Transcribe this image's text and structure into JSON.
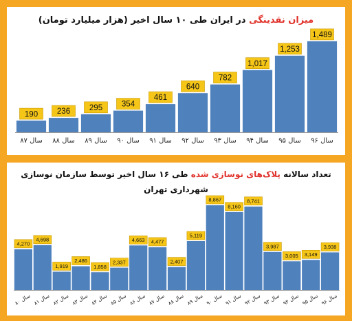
{
  "colors": {
    "bar": "#4f81bd",
    "label_bg": "#f5c518",
    "frame": "#f5a623",
    "title_highlight": "#e0312a"
  },
  "chart_data": [
    {
      "type": "bar",
      "title": {
        "highlight": "میزان نقدینگی",
        "rest": " در ایران طی ۱۰ سال اخیر (هزار میلیارد تومان)"
      },
      "categories": [
        "سال ۸۷",
        "سال ۸۸",
        "سال ۸۹",
        "سال ۹۰",
        "سال ۹۱",
        "سال ۹۲",
        "سال ۹۳",
        "سال ۹۴",
        "سال ۹۵",
        "سال ۹۶"
      ],
      "values": [
        190,
        236,
        295,
        354,
        461,
        640,
        782,
        1017,
        1253,
        1489
      ],
      "value_labels": [
        "190",
        "236",
        "295",
        "354",
        "461",
        "640",
        "782",
        "1,017",
        "1,253",
        "1,489"
      ],
      "ylim": [
        0,
        1600
      ]
    },
    {
      "type": "bar",
      "title": {
        "line1_prefix": "تعداد سالانه ",
        "highlight": "پلاک‌های نوسازی شده",
        "line1_suffix": " طی ۱۶ سال اخیر توسط سازمان نوسازی",
        "line2": "شهرداری تهران"
      },
      "categories": [
        "سال ۸۰",
        "سال ۸۱",
        "سال ۸۲",
        "سال ۸۳",
        "سال ۸۴",
        "سال ۸۵",
        "سال ۸۶",
        "سال ۸۷",
        "سال ۸۸",
        "سال ۸۹",
        "سال ۹۰",
        "سال ۹۱",
        "سال ۹۲",
        "سال ۹۳",
        "سال ۹۴",
        "سال ۹۵",
        "سال ۹۶"
      ],
      "values": [
        4270,
        4698,
        1919,
        2486,
        1858,
        2337,
        4663,
        4477,
        2407,
        5119,
        8867,
        8160,
        8741,
        3987,
        3005,
        3149,
        3938
      ],
      "value_labels": [
        "4,270",
        "4,698",
        "1,919",
        "2,486",
        "1,858",
        "2,337",
        "4,663",
        "4,477",
        "2,407",
        "5,119",
        "8,867",
        "8,160",
        "8,741",
        "3,987",
        "3,005",
        "3,149",
        "3,938"
      ],
      "ylim": [
        0,
        9300
      ]
    }
  ]
}
